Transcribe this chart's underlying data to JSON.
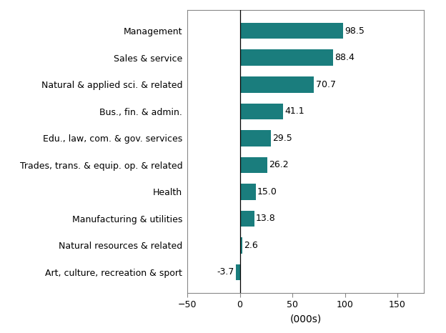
{
  "categories": [
    "Art, culture, recreation & sport",
    "Natural resources & related",
    "Manufacturing & utilities",
    "Health",
    "Trades, trans. & equip. op. & related",
    "Edu., law, com. & gov. services",
    "Bus., fin. & admin.",
    "Natural & applied sci. & related",
    "Sales & service",
    "Management"
  ],
  "values": [
    -3.7,
    2.6,
    13.8,
    15.0,
    26.2,
    29.5,
    41.1,
    70.7,
    88.4,
    98.5
  ],
  "bar_color": "#1a7d7d",
  "xlabel": "(000s)",
  "xlim": [
    -50,
    175
  ],
  "xticks": [
    -50,
    0,
    50,
    100,
    150
  ],
  "bar_height": 0.6,
  "label_fontsize": 9,
  "tick_fontsize": 9,
  "xlabel_fontsize": 10,
  "background_color": "#ffffff"
}
